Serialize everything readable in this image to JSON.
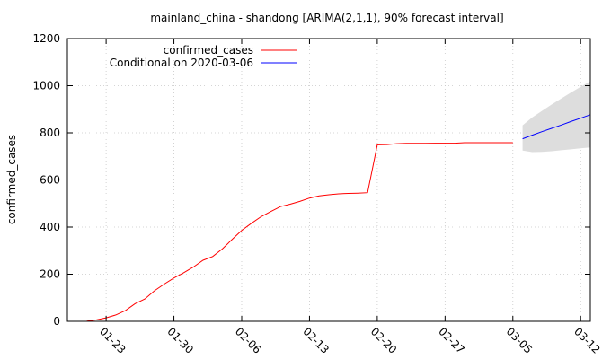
{
  "chart_data": {
    "type": "line",
    "title": "mainland_china - shandong [ARIMA(2,1,1), 90% forecast interval]",
    "xlabel": "",
    "ylabel": "confirmed_cases",
    "ylim": [
      0,
      1200
    ],
    "y_ticks": [
      0,
      200,
      400,
      600,
      800,
      1000,
      1200
    ],
    "x_range": [
      "2020-01-19",
      "2020-03-13"
    ],
    "x_ticks": [
      {
        "date": "2020-01-23",
        "label": "01-23"
      },
      {
        "date": "2020-01-30",
        "label": "01-30"
      },
      {
        "date": "2020-02-06",
        "label": "02-06"
      },
      {
        "date": "2020-02-13",
        "label": "02-13"
      },
      {
        "date": "2020-02-20",
        "label": "02-20"
      },
      {
        "date": "2020-02-27",
        "label": "02-27"
      },
      {
        "date": "2020-03-05",
        "label": "03-05"
      },
      {
        "date": "2020-03-12",
        "label": "03-12"
      }
    ],
    "grid": true,
    "legend_position": "top-left",
    "series": [
      {
        "name": "confirmed_cases",
        "color": "#ff0000",
        "x": [
          "2020-01-21",
          "2020-01-22",
          "2020-01-23",
          "2020-01-24",
          "2020-01-25",
          "2020-01-26",
          "2020-01-27",
          "2020-01-28",
          "2020-01-29",
          "2020-01-30",
          "2020-01-31",
          "2020-02-01",
          "2020-02-02",
          "2020-02-03",
          "2020-02-04",
          "2020-02-05",
          "2020-02-06",
          "2020-02-07",
          "2020-02-08",
          "2020-02-09",
          "2020-02-10",
          "2020-02-11",
          "2020-02-12",
          "2020-02-13",
          "2020-02-14",
          "2020-02-15",
          "2020-02-16",
          "2020-02-17",
          "2020-02-18",
          "2020-02-19",
          "2020-02-20",
          "2020-02-21",
          "2020-02-22",
          "2020-02-23",
          "2020-02-24",
          "2020-02-25",
          "2020-02-26",
          "2020-02-27",
          "2020-02-28",
          "2020-02-29",
          "2020-03-01",
          "2020-03-02",
          "2020-03-03",
          "2020-03-04",
          "2020-03-05"
        ],
        "y": [
          1,
          6,
          15,
          27,
          46,
          75,
          95,
          130,
          158,
          184,
          206,
          230,
          259,
          275,
          307,
          347,
          386,
          416,
          444,
          466,
          487,
          497,
          509,
          523,
          532,
          537,
          541,
          543,
          544,
          546,
          749,
          750,
          754,
          755,
          755,
          755,
          756,
          756,
          756,
          758,
          758,
          758,
          758,
          758,
          758
        ]
      },
      {
        "name": "Conditional on 2020-03-06",
        "color": "#0000ff",
        "x": [
          "2020-03-06",
          "2020-03-07",
          "2020-03-08",
          "2020-03-09",
          "2020-03-10",
          "2020-03-11",
          "2020-03-12",
          "2020-03-13"
        ],
        "y": [
          775,
          790,
          805,
          819,
          833,
          848,
          862,
          877
        ]
      }
    ],
    "forecast_interval": {
      "color": "#dddddd",
      "x": [
        "2020-03-06",
        "2020-03-07",
        "2020-03-08",
        "2020-03-09",
        "2020-03-10",
        "2020-03-11",
        "2020-03-12",
        "2020-03-13"
      ],
      "lower": [
        725,
        718,
        719,
        722,
        726,
        730,
        734,
        738
      ],
      "upper": [
        832,
        865,
        893,
        920,
        946,
        971,
        995,
        1019
      ]
    }
  }
}
